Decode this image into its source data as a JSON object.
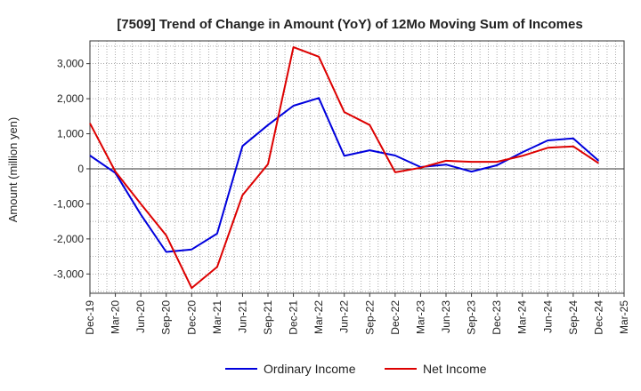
{
  "chart_data": {
    "type": "line",
    "title": "[7509]  Trend of Change in Amount (YoY) of 12Mo Moving Sum of Incomes",
    "xlabel": "",
    "ylabel": "Amount (million yen)",
    "ylim": [
      -3550,
      3650
    ],
    "yticks": [
      3000,
      2000,
      1000,
      0,
      -1000,
      -2000,
      -3000
    ],
    "ytick_labels": [
      "3,000",
      "2,000",
      "1,000",
      "0",
      "-1,000",
      "-2,000",
      "-3,000"
    ],
    "categories": [
      "Dec-19",
      "Mar-20",
      "Jun-20",
      "Sep-20",
      "Dec-20",
      "Mar-21",
      "Jun-21",
      "Sep-21",
      "Dec-21",
      "Mar-22",
      "Jun-22",
      "Sep-22",
      "Dec-22",
      "Mar-23",
      "Jun-23",
      "Sep-23",
      "Dec-23",
      "Mar-24",
      "Jun-24",
      "Sep-24",
      "Dec-24",
      "Mar-25"
    ],
    "grid": true,
    "legend_position": "bottom",
    "series": [
      {
        "name": "Ordinary Income",
        "color": "#0000dd",
        "values": [
          380,
          -120,
          -1300,
          -2370,
          -2300,
          -1850,
          650,
          1250,
          1800,
          2020,
          370,
          530,
          380,
          50,
          120,
          -80,
          100,
          470,
          810,
          870,
          230,
          null
        ]
      },
      {
        "name": "Net Income",
        "color": "#dd0000",
        "values": [
          1300,
          -80,
          -1000,
          -1900,
          -3400,
          -2800,
          -750,
          130,
          3470,
          3200,
          1620,
          1250,
          -100,
          30,
          230,
          200,
          200,
          370,
          600,
          640,
          160,
          null
        ]
      }
    ]
  }
}
